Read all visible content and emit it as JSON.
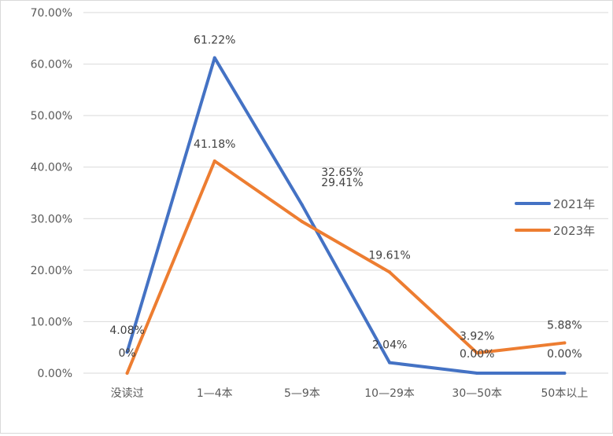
{
  "chart_data": {
    "type": "line",
    "title": "",
    "xlabel": "",
    "ylabel": "",
    "categories": [
      "没读过",
      "1—4本",
      "5—9本",
      "10—29本",
      "30—50本",
      "50本以上"
    ],
    "ylim": [
      0,
      70
    ],
    "y_ticks": [
      0,
      10,
      20,
      30,
      40,
      50,
      60,
      70
    ],
    "y_tick_labels": [
      "0.00%",
      "10.00%",
      "20.00%",
      "30.00%",
      "40.00%",
      "50.00%",
      "60.00%",
      "70.00%"
    ],
    "grid": true,
    "legend_position": "right",
    "series": [
      {
        "name": "2021年",
        "color": "#4472c4",
        "values": [
          4.08,
          61.22,
          32.65,
          2.04,
          0,
          0
        ],
        "labels": [
          "4.08%",
          "61.22%",
          "32.65%",
          "2.04%",
          "",
          ""
        ]
      },
      {
        "name": "2023年",
        "color": "#ed7d31",
        "values": [
          0,
          41.18,
          29.41,
          19.61,
          3.92,
          5.88
        ],
        "labels": [
          "0%",
          "41.18%",
          "29.41%",
          "19.61%",
          "3.92%",
          "5.88%"
        ]
      }
    ],
    "annotations": [
      "0.00%",
      "0.00%"
    ]
  }
}
